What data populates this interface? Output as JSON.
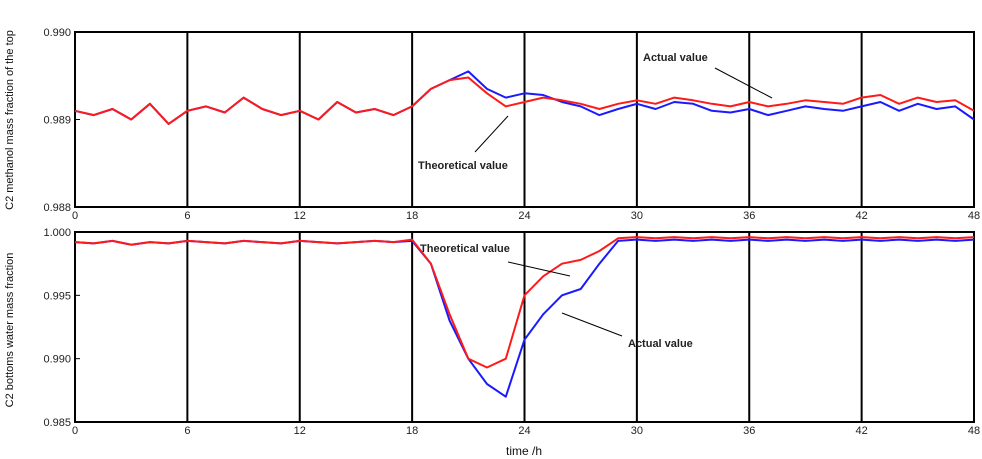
{
  "chart_data": [
    {
      "type": "line",
      "ylabel": "C2 methanol mass fraction of the top",
      "xlabel": "",
      "xlim": [
        0,
        48
      ],
      "ylim": [
        0.988,
        0.99
      ],
      "xticks": [
        "0",
        "6",
        "12",
        "18",
        "24",
        "30",
        "36",
        "42",
        "48"
      ],
      "yticks": [
        "0.988",
        "0.989",
        "0.990"
      ],
      "grid": "vertical lines at every 6 h",
      "x": [
        0,
        1,
        2,
        3,
        4,
        5,
        6,
        7,
        8,
        9,
        10,
        11,
        12,
        13,
        14,
        15,
        16,
        17,
        18,
        19,
        20,
        21,
        22,
        23,
        24,
        25,
        26,
        27,
        28,
        29,
        30,
        31,
        32,
        33,
        34,
        35,
        36,
        37,
        38,
        39,
        40,
        41,
        42,
        43,
        44,
        45,
        46,
        47,
        48
      ],
      "series": [
        {
          "name": "Actual value",
          "color": "#1a1aff",
          "values": [
            0.9891,
            0.98905,
            0.98912,
            0.989,
            0.98918,
            0.98895,
            0.9891,
            0.98915,
            0.98908,
            0.98925,
            0.98912,
            0.98905,
            0.9891,
            0.989,
            0.9892,
            0.98908,
            0.98912,
            0.98905,
            0.98915,
            0.98935,
            0.98945,
            0.98955,
            0.98935,
            0.98925,
            0.9893,
            0.98928,
            0.9892,
            0.98915,
            0.98905,
            0.98912,
            0.98918,
            0.98912,
            0.9892,
            0.98918,
            0.9891,
            0.98908,
            0.98912,
            0.98905,
            0.9891,
            0.98915,
            0.98912,
            0.9891,
            0.98915,
            0.9892,
            0.9891,
            0.98918,
            0.98912,
            0.98915,
            0.989
          ]
        },
        {
          "name": "Theoretical value",
          "color": "#ff1a1a",
          "values": [
            0.9891,
            0.98905,
            0.98912,
            0.989,
            0.98918,
            0.98895,
            0.9891,
            0.98915,
            0.98908,
            0.98925,
            0.98912,
            0.98905,
            0.9891,
            0.989,
            0.9892,
            0.98908,
            0.98912,
            0.98905,
            0.98915,
            0.98935,
            0.98945,
            0.98948,
            0.9893,
            0.98915,
            0.9892,
            0.98925,
            0.98922,
            0.98918,
            0.98912,
            0.98918,
            0.98922,
            0.98918,
            0.98925,
            0.98922,
            0.98918,
            0.98915,
            0.9892,
            0.98915,
            0.98918,
            0.98922,
            0.9892,
            0.98918,
            0.98925,
            0.98928,
            0.98918,
            0.98925,
            0.9892,
            0.98922,
            0.9891
          ]
        }
      ],
      "annotations": [
        "Actual value",
        "Theoretical value"
      ]
    },
    {
      "type": "line",
      "ylabel": "C2 bottoms water mass fraction",
      "xlabel": "time /h",
      "xlim": [
        0,
        48
      ],
      "ylim": [
        0.985,
        1.0
      ],
      "xticks": [
        "0",
        "6",
        "12",
        "18",
        "24",
        "30",
        "36",
        "42",
        "48"
      ],
      "yticks": [
        "0.985",
        "0.990",
        "0.995",
        "1.000"
      ],
      "grid": "vertical lines at every 6 h",
      "x": [
        0,
        1,
        2,
        3,
        4,
        5,
        6,
        7,
        8,
        9,
        10,
        11,
        12,
        13,
        14,
        15,
        16,
        17,
        18,
        19,
        20,
        21,
        22,
        23,
        24,
        25,
        26,
        27,
        28,
        29,
        30,
        31,
        32,
        33,
        34,
        35,
        36,
        37,
        38,
        39,
        40,
        41,
        42,
        43,
        44,
        45,
        46,
        47,
        48
      ],
      "series": [
        {
          "name": "Actual value",
          "color": "#1a1aff",
          "values": [
            0.9992,
            0.9991,
            0.9993,
            0.999,
            0.9992,
            0.9991,
            0.9993,
            0.9992,
            0.9991,
            0.9993,
            0.9992,
            0.9991,
            0.9993,
            0.9992,
            0.9991,
            0.9992,
            0.9993,
            0.9992,
            0.9993,
            0.9975,
            0.993,
            0.99,
            0.988,
            0.987,
            0.9915,
            0.9935,
            0.995,
            0.9955,
            0.9975,
            0.9993,
            0.9994,
            0.9993,
            0.9994,
            0.9993,
            0.9994,
            0.9993,
            0.9994,
            0.9993,
            0.9994,
            0.9993,
            0.9994,
            0.9993,
            0.9994,
            0.9993,
            0.9994,
            0.9993,
            0.9994,
            0.9993,
            0.9994
          ]
        },
        {
          "name": "Theoretical value",
          "color": "#ff1a1a",
          "values": [
            0.9992,
            0.9991,
            0.9993,
            0.999,
            0.9992,
            0.9991,
            0.9993,
            0.9992,
            0.9991,
            0.9993,
            0.9992,
            0.9991,
            0.9993,
            0.9992,
            0.9991,
            0.9992,
            0.9993,
            0.9992,
            0.9994,
            0.9975,
            0.9935,
            0.99,
            0.9893,
            0.99,
            0.995,
            0.9965,
            0.9975,
            0.9978,
            0.9985,
            0.9995,
            0.9996,
            0.9995,
            0.9996,
            0.9995,
            0.9996,
            0.9995,
            0.9996,
            0.9995,
            0.9996,
            0.9995,
            0.9996,
            0.9995,
            0.9996,
            0.9995,
            0.9996,
            0.9995,
            0.9996,
            0.9995,
            0.9996
          ]
        }
      ],
      "annotations": [
        "Theoretical value",
        "Actual value"
      ]
    }
  ]
}
